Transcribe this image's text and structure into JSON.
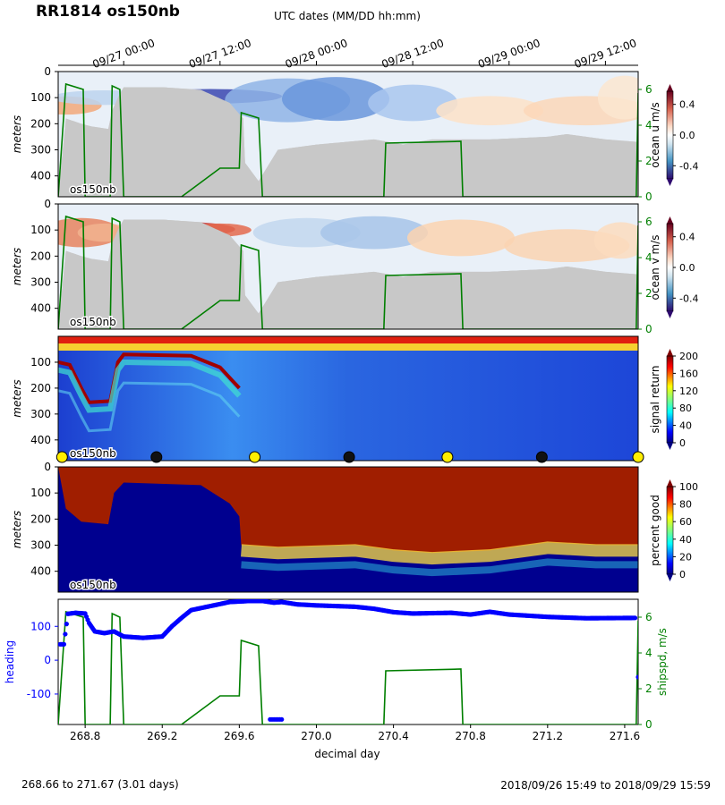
{
  "title": "RR1814 os150nb",
  "top_axis_label": "UTC dates (MM/DD hh:mm)",
  "date_ticks": [
    {
      "day": 269.0,
      "label": "09/27 00:00"
    },
    {
      "day": 269.5,
      "label": "09/27 12:00"
    },
    {
      "day": 270.0,
      "label": "09/28 00:00"
    },
    {
      "day": 270.5,
      "label": "09/28 12:00"
    },
    {
      "day": 271.0,
      "label": "09/29 00:00"
    },
    {
      "day": 271.5,
      "label": "09/29 12:00"
    }
  ],
  "footer": {
    "left": "268.66 to 271.67 (3.01 days)",
    "right": "2018/09/26 15:49 to 2018/09/29 15:59"
  },
  "chart_data": [
    {
      "type": "heatmap",
      "ylabel": "meters",
      "colorbar_label": "ocean u m/s",
      "colorbar_ticks": [
        "0.4",
        "0.0",
        "-0.4"
      ],
      "right_ylabel_ticks": [
        "0",
        "2",
        "4",
        "6"
      ],
      "panel_tag": "os150nb",
      "xlim": [
        268.66,
        271.67
      ],
      "ylim": [
        480,
        0
      ],
      "yticks": [
        0,
        100,
        200,
        300,
        400
      ]
    },
    {
      "type": "heatmap",
      "ylabel": "meters",
      "colorbar_label": "ocean v m/s",
      "colorbar_ticks": [
        "0.4",
        "0.0",
        "-0.4"
      ],
      "right_ylabel_ticks": [
        "0",
        "2",
        "4",
        "6"
      ],
      "panel_tag": "os150nb",
      "xlim": [
        268.66,
        271.67
      ],
      "ylim": [
        480,
        0
      ],
      "yticks": [
        0,
        100,
        200,
        300,
        400
      ]
    },
    {
      "type": "heatmap",
      "ylabel": "meters",
      "colorbar_label": "signal return",
      "colorbar_ticks": [
        "200",
        "160",
        "120",
        "80",
        "40",
        "0"
      ],
      "panel_tag": "os150nb",
      "xlim": [
        268.66,
        271.67
      ],
      "ylim": [
        480,
        0
      ],
      "yticks": [
        100,
        200,
        300,
        400
      ],
      "day_night_markers": [
        {
          "day": 268.68,
          "kind": "day"
        },
        {
          "day": 269.17,
          "kind": "night"
        },
        {
          "day": 269.68,
          "kind": "day"
        },
        {
          "day": 270.17,
          "kind": "night"
        },
        {
          "day": 270.68,
          "kind": "day"
        },
        {
          "day": 271.17,
          "kind": "night"
        },
        {
          "day": 271.67,
          "kind": "day"
        }
      ]
    },
    {
      "type": "heatmap",
      "ylabel": "meters",
      "colorbar_label": "percent good",
      "colorbar_ticks": [
        "100",
        "80",
        "60",
        "40",
        "20",
        "0"
      ],
      "panel_tag": "os150nb",
      "xlim": [
        268.66,
        271.67
      ],
      "ylim": [
        480,
        0
      ],
      "yticks": [
        0,
        100,
        200,
        300,
        400
      ]
    },
    {
      "type": "scatter",
      "xlabel": "decimal day",
      "ylabel": "heading",
      "ylabel_right": "shipspd, m/s",
      "xlim": [
        268.66,
        271.67
      ],
      "xticks": [
        "268.8",
        "269.2",
        "269.6",
        "270.0",
        "270.4",
        "270.8",
        "271.2",
        "271.6"
      ],
      "yticks": [
        "100",
        "0",
        "-100"
      ],
      "y2ticks": [
        "0",
        "2",
        "4",
        "6"
      ],
      "series": [
        {
          "label": "heading",
          "color": "#0000ff",
          "points": [
            [
              268.67,
              47
            ],
            [
              268.69,
              47
            ],
            [
              268.71,
              137
            ],
            [
              268.75,
              140
            ],
            [
              268.8,
              138
            ],
            [
              268.82,
              110
            ],
            [
              268.85,
              85
            ],
            [
              268.9,
              80
            ],
            [
              268.95,
              85
            ],
            [
              269.0,
              70
            ],
            [
              269.1,
              66
            ],
            [
              269.2,
              70
            ],
            [
              269.25,
              100
            ],
            [
              269.3,
              125
            ],
            [
              269.35,
              148
            ],
            [
              269.45,
              160
            ],
            [
              269.55,
              172
            ],
            [
              269.65,
              175
            ],
            [
              269.72,
              175
            ],
            [
              269.78,
              170
            ],
            [
              269.82,
              172
            ],
            [
              269.9,
              165
            ],
            [
              270.0,
              162
            ],
            [
              270.1,
              160
            ],
            [
              270.2,
              158
            ],
            [
              270.3,
              152
            ],
            [
              270.4,
              142
            ],
            [
              270.5,
              138
            ],
            [
              270.7,
              140
            ],
            [
              270.8,
              135
            ],
            [
              270.9,
              143
            ],
            [
              271.0,
              135
            ],
            [
              271.2,
              128
            ],
            [
              271.4,
              124
            ],
            [
              271.66,
              125
            ]
          ]
        },
        {
          "label": "shipspd",
          "color": "#007f00",
          "points": [
            [
              268.66,
              0
            ],
            [
              268.7,
              6.3
            ],
            [
              268.79,
              6.0
            ],
            [
              268.8,
              0
            ],
            [
              268.93,
              0
            ],
            [
              268.94,
              6.2
            ],
            [
              268.98,
              6.0
            ],
            [
              269.0,
              0
            ],
            [
              269.3,
              0
            ],
            [
              269.5,
              1.6
            ],
            [
              269.6,
              1.6
            ],
            [
              269.61,
              4.7
            ],
            [
              269.7,
              4.4
            ],
            [
              269.72,
              0
            ],
            [
              270.35,
              0
            ],
            [
              270.36,
              3.0
            ],
            [
              270.75,
              3.1
            ],
            [
              270.76,
              0
            ],
            [
              271.66,
              0
            ],
            [
              271.67,
              5.8
            ]
          ]
        }
      ]
    }
  ]
}
